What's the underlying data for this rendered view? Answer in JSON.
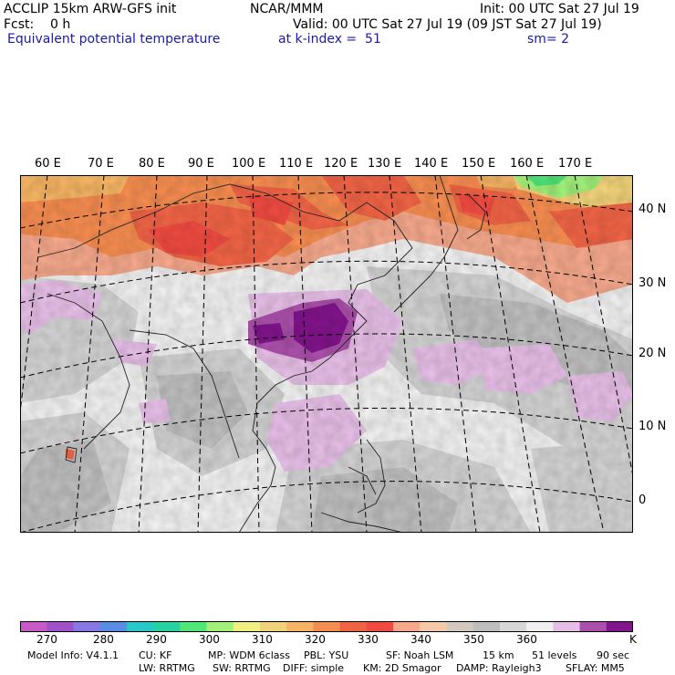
{
  "header": {
    "title": "ACCLIP 15km ARW-GFS init",
    "forecast": "Fcst:    0 h",
    "center": "NCAR/MMM",
    "init": "Init: 00 UTC Sat 27 Jul 19",
    "valid": "Valid: 00 UTC Sat 27 Jul 19 (09 JST Sat 27 Jul 19)",
    "field": "Equivalent potential temperature",
    "level": "at k-index =  51",
    "smooth": "sm= 2"
  },
  "map": {
    "lon_labels": [
      "60 E",
      "70 E",
      "80 E",
      "90 E",
      "100 E",
      "110 E",
      "120 E",
      "130 E",
      "140 E",
      "150 E",
      "160 E",
      "170 E"
    ],
    "lat_labels": [
      "40 N",
      "30 N",
      "20 N",
      "10 N",
      "0"
    ]
  },
  "colorbar": {
    "colors": [
      "#c85ac8",
      "#a050c8",
      "#8878e6",
      "#5a8ce6",
      "#28c8c8",
      "#28d2a0",
      "#50e678",
      "#a0f07a",
      "#f0f082",
      "#f0d27a",
      "#f5b464",
      "#f58c50",
      "#f06446",
      "#f04b41",
      "#f5a88c",
      "#f5c8aa",
      "#d2c8be",
      "#bebebe",
      "#d7d7d7",
      "#f0f0f0",
      "#e6bee6",
      "#aa50aa",
      "#82148c"
    ],
    "labels": [
      "270",
      "280",
      "290",
      "300",
      "310",
      "320",
      "330",
      "340",
      "350",
      "360",
      "K"
    ]
  },
  "footer": {
    "line1": [
      "Model Info: V4.1.1",
      "CU: KF",
      "MP: WDM 6class",
      "PBL: YSU",
      "SF: Noah LSM",
      "15 km",
      "51 levels",
      "90 sec"
    ],
    "line2": [
      "LW: RRTMG",
      "SW: RRTMG",
      "DIFF: simple",
      "KM: 2D Smagor",
      "DAMP: Rayleigh3",
      "SFLAY: MM5"
    ]
  }
}
